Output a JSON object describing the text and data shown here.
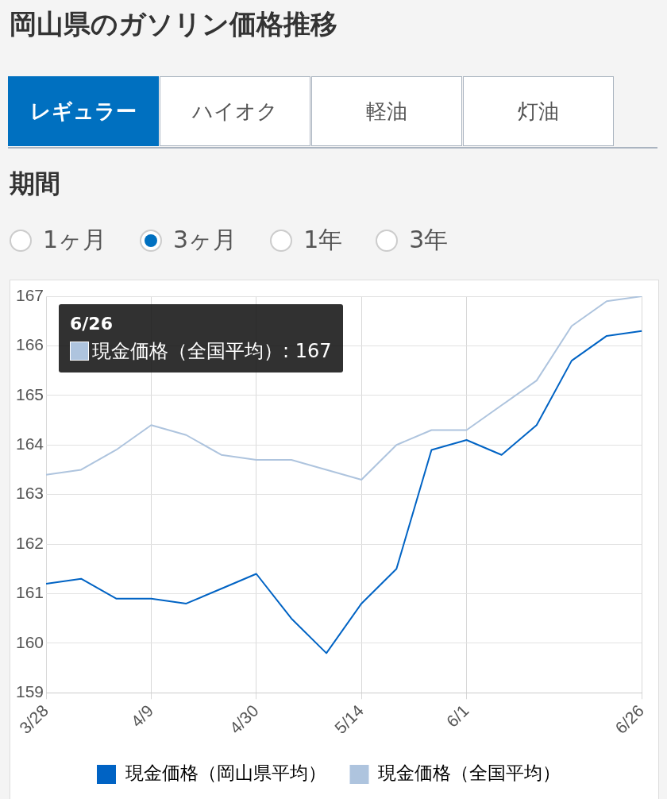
{
  "chart_data": {
    "type": "line",
    "title": "岡山県のガソリン価格推移",
    "annotations": [
      "レギュラー",
      "ハイオク",
      "軽油",
      "灯油",
      "期間",
      "1ヶ月",
      "3ヶ月",
      "1年",
      "3年",
      "6/26",
      "現金価格（全国平均）: 167"
    ],
    "categories": [
      "3/28",
      null,
      null,
      "4/9",
      null,
      null,
      "4/30",
      null,
      null,
      "5/14",
      null,
      null,
      "6/1",
      null,
      null,
      null,
      null,
      "6/26"
    ],
    "series": [
      {
        "name": "現金価格（岡山県平均）",
        "color": "#0063c4",
        "values": [
          161.2,
          161.3,
          160.9,
          160.9,
          160.8,
          161.1,
          161.4,
          160.5,
          159.8,
          160.8,
          161.5,
          163.9,
          164.1,
          163.8,
          164.4,
          165.7,
          166.2,
          166.3
        ]
      },
      {
        "name": "現金価格（全国平均）",
        "color": "#aec4de",
        "values": [
          163.4,
          163.5,
          163.9,
          164.4,
          164.2,
          163.8,
          163.7,
          163.7,
          163.5,
          163.3,
          164.0,
          164.3,
          164.3,
          164.8,
          165.3,
          166.4,
          166.9,
          167
        ]
      }
    ],
    "ylim": [
      159,
      167
    ],
    "yticks": [
      159,
      160,
      161,
      162,
      163,
      164,
      165,
      166,
      167
    ],
    "grid": true,
    "legend": "bottom",
    "marker": "none",
    "line_style": "solid"
  }
}
